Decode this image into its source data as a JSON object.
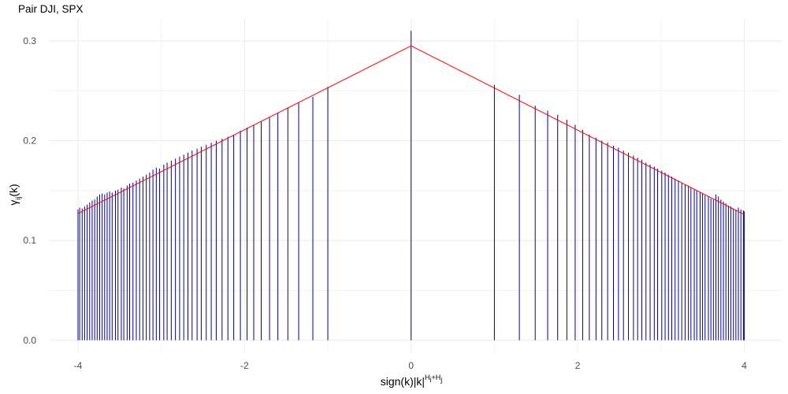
{
  "chart_data": {
    "type": "bar",
    "title": "Pair DJI, SPX",
    "xlabel": {
      "main": "sign(k)|k|",
      "superscript": "H",
      "superscript_sub_1": "i",
      "superscript_mid": "+H",
      "superscript_sub_2": "j"
    },
    "ylabel": {
      "symbol": "γ",
      "subscript": "ij",
      "suffix": "(k)"
    },
    "xlim": [
      -4.35,
      4.45
    ],
    "ylim": [
      -0.012,
      0.322
    ],
    "x_ticks": [
      -4,
      -2,
      0,
      2,
      4
    ],
    "x_tick_labels": [
      "-4",
      "-2",
      "0",
      "2",
      "4"
    ],
    "y_ticks": [
      0.0,
      0.1,
      0.2,
      0.3
    ],
    "y_tick_labels": [
      "0.0",
      "0.1",
      "0.2",
      "0.3"
    ],
    "grid": true,
    "colors": {
      "bars": "#00008b",
      "fit_line": "#ff0000",
      "grid": "#ebebeb"
    },
    "series": [
      {
        "mark": "segment",
        "x": [
          -4.0,
          -3.98,
          -3.95,
          -3.92,
          -3.89,
          -3.86,
          -3.83,
          -3.8,
          -3.77,
          -3.74,
          -3.71,
          -3.68,
          -3.65,
          -3.62,
          -3.59,
          -3.55,
          -3.52,
          -3.48,
          -3.45,
          -3.41,
          -3.38,
          -3.34,
          -3.3,
          -3.26,
          -3.22,
          -3.18,
          -3.14,
          -3.1,
          -3.06,
          -3.02,
          -2.97,
          -2.93,
          -2.88,
          -2.83,
          -2.78,
          -2.73,
          -2.68,
          -2.63,
          -2.57,
          -2.52,
          -2.46,
          -2.4,
          -2.34,
          -2.27,
          -2.2,
          -2.13,
          -2.05,
          -1.97,
          -1.89,
          -1.8,
          -1.7,
          -1.6,
          -1.48,
          -1.35,
          -1.18,
          -1.0,
          0.0,
          1.0,
          1.3,
          1.49,
          1.64,
          1.76,
          1.87,
          1.97,
          2.06,
          2.14,
          2.22,
          2.29,
          2.36,
          2.43,
          2.49,
          2.55,
          2.61,
          2.67,
          2.72,
          2.77,
          2.82,
          2.87,
          2.92,
          2.96,
          3.01,
          3.05,
          3.09,
          3.13,
          3.17,
          3.21,
          3.25,
          3.29,
          3.33,
          3.36,
          3.4,
          3.43,
          3.47,
          3.5,
          3.53,
          3.57,
          3.6,
          3.63,
          3.66,
          3.69,
          3.72,
          3.75,
          3.78,
          3.81,
          3.84,
          3.87,
          3.9,
          3.93,
          3.96,
          3.99,
          4.0
        ],
        "y": [
          0.131,
          0.133,
          0.132,
          0.134,
          0.136,
          0.138,
          0.14,
          0.141,
          0.144,
          0.146,
          0.147,
          0.146,
          0.148,
          0.149,
          0.148,
          0.15,
          0.151,
          0.153,
          0.152,
          0.155,
          0.157,
          0.158,
          0.16,
          0.162,
          0.164,
          0.166,
          0.168,
          0.171,
          0.173,
          0.172,
          0.176,
          0.178,
          0.18,
          0.182,
          0.184,
          0.186,
          0.188,
          0.19,
          0.192,
          0.194,
          0.196,
          0.198,
          0.2,
          0.202,
          0.204,
          0.206,
          0.21,
          0.213,
          0.216,
          0.219,
          0.223,
          0.228,
          0.233,
          0.238,
          0.244,
          0.254,
          0.31,
          0.256,
          0.246,
          0.235,
          0.23,
          0.226,
          0.221,
          0.216,
          0.211,
          0.206,
          0.203,
          0.2,
          0.198,
          0.195,
          0.193,
          0.19,
          0.188,
          0.185,
          0.183,
          0.181,
          0.178,
          0.176,
          0.174,
          0.172,
          0.17,
          0.168,
          0.166,
          0.164,
          0.162,
          0.16,
          0.158,
          0.156,
          0.155,
          0.153,
          0.151,
          0.15,
          0.148,
          0.147,
          0.145,
          0.144,
          0.142,
          0.141,
          0.146,
          0.144,
          0.141,
          0.139,
          0.137,
          0.135,
          0.134,
          0.132,
          0.131,
          0.133,
          0.131,
          0.13,
          0.129
        ]
      },
      {
        "mark": "line",
        "x": [
          -4.0,
          0.0,
          4.0
        ],
        "y": [
          0.127,
          0.295,
          0.126
        ]
      }
    ]
  }
}
